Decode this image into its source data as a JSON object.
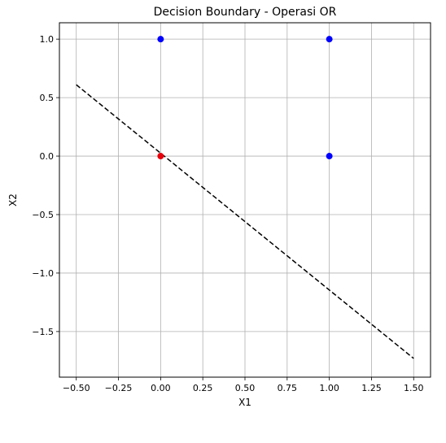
{
  "chart_data": {
    "type": "scatter",
    "title": "Decision Boundary - Operasi OR",
    "xlabel": "X1",
    "ylabel": "X2",
    "xlim": [
      -0.6,
      1.6
    ],
    "ylim": [
      -1.89,
      1.14
    ],
    "grid": true,
    "xticks": [
      -0.5,
      -0.25,
      0.0,
      0.25,
      0.5,
      0.75,
      1.0,
      1.25,
      1.5
    ],
    "xtick_labels": [
      "−0.50",
      "−0.25",
      "0.00",
      "0.25",
      "0.50",
      "0.75",
      "1.00",
      "1.25",
      "1.50"
    ],
    "yticks": [
      1.0,
      0.5,
      0.0,
      -0.5,
      -1.0,
      -1.5
    ],
    "ytick_labels": [
      "1.0",
      "0.5",
      "0.0",
      "−0.5",
      "−1.0",
      "−1.5"
    ],
    "points": [
      {
        "x": 0,
        "y": 0,
        "color": "#e8000b"
      },
      {
        "x": 0,
        "y": 1,
        "color": "#0000ff"
      },
      {
        "x": 1,
        "y": 0,
        "color": "#0000ff"
      },
      {
        "x": 1,
        "y": 1,
        "color": "#0000ff"
      }
    ],
    "boundary_line": {
      "x": [
        -0.5,
        1.5
      ],
      "y": [
        0.61,
        -1.73
      ],
      "style": "dashed",
      "color": "#000000"
    }
  }
}
